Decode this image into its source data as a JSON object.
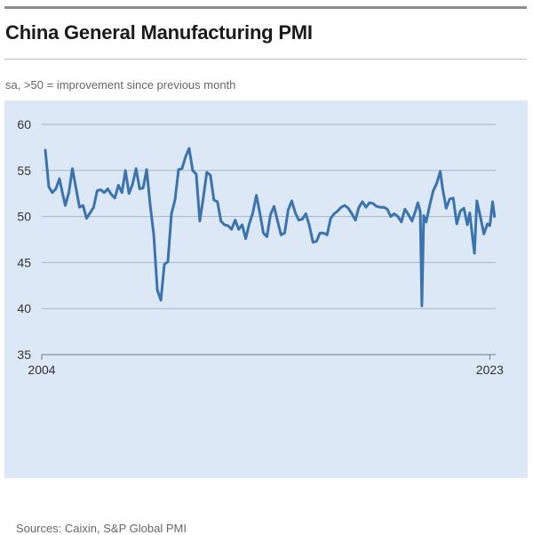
{
  "header": {
    "title": "China General Manufacturing PMI",
    "subtitle": "sa, >50 = improvement since previous month"
  },
  "footer": {
    "source": "Sources: Caixin, S&P Global PMI"
  },
  "colors": {
    "line": "#3b74ad",
    "background": "#dce8f5",
    "grid": "#aab5c2"
  },
  "chart_data": {
    "type": "line",
    "title": "China General Manufacturing PMI",
    "subtitle": "sa, >50 = improvement since previous month",
    "xlabel": "",
    "ylabel": "",
    "x_tick_labels": [
      "2004",
      "2023"
    ],
    "y_ticks": [
      35,
      40,
      45,
      50,
      55,
      60
    ],
    "ylim": [
      35,
      60
    ],
    "xlim": [
      2004.0,
      2023.25
    ],
    "grid": "horizontal",
    "legend": "none",
    "series": [
      {
        "x": [
          2004.15,
          2004.3,
          2004.45,
          2004.6,
          2004.75,
          2004.9,
          2005.0,
          2005.15,
          2005.3,
          2005.45,
          2005.6,
          2005.75,
          2005.9,
          2006.05,
          2006.2,
          2006.35,
          2006.5,
          2006.65,
          2006.8,
          2006.95,
          2007.1,
          2007.25,
          2007.4,
          2007.55,
          2007.7,
          2007.85,
          2008.0,
          2008.15,
          2008.3,
          2008.45,
          2008.6,
          2008.75,
          2008.9,
          2009.05,
          2009.2,
          2009.35,
          2009.5,
          2009.65,
          2009.8,
          2009.95,
          2010.1,
          2010.25,
          2010.4,
          2010.55,
          2010.7,
          2010.85,
          2011.0,
          2011.15,
          2011.3,
          2011.45,
          2011.6,
          2011.75,
          2011.9,
          2012.05,
          2012.2,
          2012.35,
          2012.5,
          2012.65,
          2012.8,
          2012.95,
          2013.1,
          2013.25,
          2013.4,
          2013.55,
          2013.7,
          2013.85,
          2014.0,
          2014.15,
          2014.3,
          2014.45,
          2014.6,
          2014.75,
          2014.9,
          2015.05,
          2015.2,
          2015.35,
          2015.5,
          2015.65,
          2015.8,
          2015.95,
          2016.1,
          2016.25,
          2016.4,
          2016.55,
          2016.7,
          2016.85,
          2017.0,
          2017.15,
          2017.3,
          2017.45,
          2017.6,
          2017.75,
          2017.9,
          2018.05,
          2018.2,
          2018.35,
          2018.5,
          2018.65,
          2018.8,
          2018.95,
          2019.1,
          2019.25,
          2019.4,
          2019.55,
          2019.7,
          2019.85,
          2019.95,
          2020.05,
          2020.12,
          2020.2,
          2020.3,
          2020.45,
          2020.6,
          2020.75,
          2020.9,
          2021.0,
          2021.15,
          2021.3,
          2021.45,
          2021.6,
          2021.75,
          2021.9,
          2022.05,
          2022.15,
          2022.25,
          2022.35,
          2022.45,
          2022.6,
          2022.75,
          2022.9,
          2023.0,
          2023.12,
          2023.2
        ],
        "y": [
          57.2,
          53.2,
          52.6,
          53.0,
          54.1,
          52.3,
          51.2,
          52.6,
          55.2,
          53.1,
          51.0,
          51.2,
          49.8,
          50.4,
          51.0,
          52.8,
          52.9,
          52.6,
          53.0,
          52.4,
          52.0,
          53.4,
          52.6,
          55.0,
          52.5,
          53.5,
          55.2,
          53.0,
          53.1,
          55.1,
          51.2,
          48.0,
          42.0,
          40.9,
          44.8,
          45.1,
          50.3,
          51.8,
          55.1,
          55.2,
          56.5,
          57.4,
          55.0,
          54.6,
          49.5,
          52.0,
          54.8,
          54.5,
          51.8,
          51.6,
          49.5,
          49.1,
          49.0,
          48.6,
          49.6,
          48.6,
          49.1,
          47.6,
          49.2,
          50.4,
          52.3,
          50.4,
          48.2,
          47.8,
          50.2,
          51.1,
          49.5,
          48.0,
          48.2,
          50.7,
          51.7,
          50.4,
          49.6,
          49.7,
          50.3,
          49.0,
          47.2,
          47.3,
          48.2,
          48.2,
          48.0,
          49.8,
          50.3,
          50.6,
          51.0,
          51.2,
          50.9,
          50.3,
          49.6,
          51.0,
          51.6,
          51.0,
          51.5,
          51.4,
          51.1,
          51.0,
          51.0,
          50.8,
          50.0,
          50.3,
          50.0,
          49.4,
          50.8,
          50.2,
          49.5,
          50.6,
          51.5,
          50.5,
          40.3,
          50.1,
          49.4,
          51.2,
          52.8,
          53.6,
          54.9,
          53.0,
          50.9,
          51.9,
          52.0,
          49.2,
          50.6,
          50.9,
          49.1,
          50.4,
          48.1,
          46.0,
          51.7,
          50.0,
          48.1,
          49.2,
          49.0,
          51.6,
          50.0
        ]
      }
    ]
  }
}
